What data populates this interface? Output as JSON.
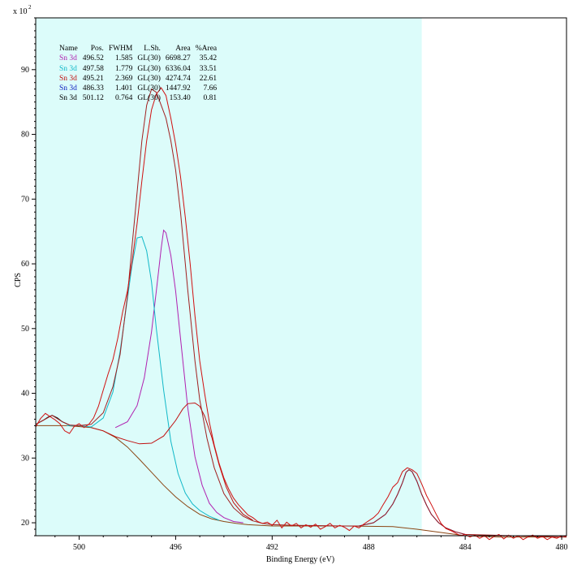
{
  "chart_data": {
    "type": "line",
    "title": "",
    "xlabel": "Binding Energy (eV)",
    "ylabel": "CPS",
    "y_multiplier_label": "x 10",
    "y_multiplier_exp": "2",
    "xlim": [
      501.8,
      479.8
    ],
    "ylim": [
      1800,
      9800
    ],
    "x_reversed": true,
    "x_ticks": [
      500,
      496,
      492,
      488,
      484,
      480
    ],
    "y_ticks": [
      20,
      30,
      40,
      50,
      60,
      70,
      80,
      90
    ],
    "y_tick_scale": 100,
    "highlight_region": {
      "x": [
        501.8,
        485.8
      ],
      "color": "#dcfcfa"
    },
    "peak_table": {
      "headers": [
        "Name",
        "Pos.",
        "FWHM",
        "L.Sh.",
        "Area",
        "%Area"
      ],
      "rows": [
        {
          "name": "Sn 3d",
          "pos": "496.52",
          "fwhm": "1.585",
          "lsh": "GL(30)",
          "area": "6698.27",
          "pct": "35.42",
          "color": "#b020b0"
        },
        {
          "name": "Sn 3d",
          "pos": "497.58",
          "fwhm": "1.779",
          "lsh": "GL(30)",
          "area": "6336.04",
          "pct": "33.51",
          "color": "#10b8c8"
        },
        {
          "name": "Sn 3d",
          "pos": "495.21",
          "fwhm": "2.369",
          "lsh": "GL(30)",
          "area": "4274.74",
          "pct": "22.61",
          "color": "#c01010"
        },
        {
          "name": "Sn 3d",
          "pos": "486.33",
          "fwhm": "1.401",
          "lsh": "GL(30)",
          "area": "1447.92",
          "pct": "7.66",
          "color": "#1020c0"
        },
        {
          "name": "Sn 3d",
          "pos": "501.12",
          "fwhm": "0.764",
          "lsh": "GL(30)",
          "area": "153.40",
          "pct": "0.81",
          "color": "#000000"
        }
      ]
    },
    "series": [
      {
        "role": "background",
        "color": "#8b4513",
        "x": [
          501.8,
          500.5,
          499.5,
          499.0,
          498.5,
          498.0,
          497.5,
          497.0,
          496.5,
          496.0,
          495.5,
          495.0,
          494.5,
          494.0,
          493.5,
          493.0,
          492.0,
          491.0,
          489.0,
          487.0,
          486.0,
          485.0,
          484.0,
          482.5,
          479.8
        ],
        "y": [
          3500,
          3500,
          3470,
          3420,
          3320,
          3170,
          2980,
          2780,
          2580,
          2400,
          2250,
          2130,
          2060,
          2020,
          1990,
          1970,
          1950,
          1950,
          1950,
          1940,
          1900,
          1850,
          1800,
          1780,
          1780
        ]
      },
      {
        "role": "component",
        "name": "Sn 3d",
        "color": "#b020b0",
        "x": [
          498.5,
          498.0,
          497.6,
          497.3,
          497.0,
          496.8,
          496.6,
          496.5,
          496.4,
          496.2,
          496.0,
          495.8,
          495.5,
          495.2,
          494.9,
          494.6,
          494.3,
          494.0,
          493.6,
          493.2
        ],
        "y": [
          3470,
          3560,
          3810,
          4240,
          4950,
          5580,
          6240,
          6520,
          6480,
          6130,
          5580,
          4850,
          3780,
          3020,
          2580,
          2300,
          2160,
          2080,
          2020,
          2000
        ]
      },
      {
        "role": "component",
        "name": "Sn 3d",
        "color": "#10b8c8",
        "x": [
          500.5,
          500.0,
          499.5,
          499.0,
          498.6,
          498.3,
          498.0,
          497.8,
          497.6,
          497.4,
          497.2,
          497.0,
          496.8,
          496.5,
          496.2,
          495.9,
          495.6,
          495.3,
          495.0,
          494.6,
          494.2
        ],
        "y": [
          3500,
          3500,
          3480,
          3620,
          4020,
          4650,
          5460,
          6000,
          6400,
          6420,
          6200,
          5720,
          5000,
          4050,
          3260,
          2760,
          2460,
          2290,
          2190,
          2100,
          2040
        ]
      },
      {
        "role": "component",
        "name": "Sn 3d",
        "color": "#c01010",
        "x": [
          499.5,
          499.0,
          498.5,
          498.0,
          497.5,
          497.0,
          496.5,
          496.0,
          495.7,
          495.5,
          495.2,
          495.0,
          494.8,
          494.5,
          494.2,
          493.9,
          493.6,
          493.2,
          492.8
        ],
        "y": [
          3470,
          3420,
          3330,
          3270,
          3220,
          3230,
          3340,
          3580,
          3760,
          3840,
          3850,
          3800,
          3650,
          3320,
          2900,
          2550,
          2310,
          2130,
          2040
        ]
      },
      {
        "role": "component",
        "name": "Sn 3d",
        "color": "#1020c0",
        "x": [
          488.4,
          487.8,
          487.3,
          487.0,
          486.8,
          486.6,
          486.45,
          486.33,
          486.2,
          486.0,
          485.8,
          485.6,
          485.4,
          485.1,
          484.8,
          484.4,
          484.0
        ],
        "y": [
          1950,
          2000,
          2130,
          2290,
          2440,
          2620,
          2780,
          2820,
          2790,
          2640,
          2440,
          2270,
          2130,
          2000,
          1920,
          1860,
          1820
        ]
      },
      {
        "role": "component",
        "name": "Sn 3d",
        "color": "#000000",
        "x": [
          501.8,
          501.5,
          501.3,
          501.12,
          500.9,
          500.7,
          500.4
        ],
        "y": [
          3520,
          3580,
          3630,
          3660,
          3620,
          3560,
          3510
        ]
      },
      {
        "role": "envelope",
        "color": "#a02020",
        "x": [
          501.8,
          501.5,
          501.12,
          500.7,
          500.4,
          500.0,
          499.5,
          499.0,
          498.6,
          498.3,
          498.0,
          497.8,
          497.6,
          497.4,
          497.2,
          497.0,
          496.8,
          496.6,
          496.4,
          496.2,
          496.0,
          495.8,
          495.5,
          495.2,
          495.0,
          494.7,
          494.4,
          494.0,
          493.6,
          493.2,
          492.8,
          492.4,
          492.0,
          491.0,
          489.0,
          488.4,
          487.8,
          487.3,
          487.0,
          486.8,
          486.6,
          486.45,
          486.33,
          486.2,
          486.0,
          485.8,
          485.6,
          485.4,
          485.1,
          484.8,
          484.4,
          484.0,
          482.0,
          479.8
        ],
        "y": [
          3520,
          3580,
          3660,
          3560,
          3510,
          3500,
          3520,
          3700,
          4100,
          4600,
          5500,
          6300,
          7100,
          7900,
          8450,
          8700,
          8650,
          8450,
          8250,
          7900,
          7450,
          6800,
          5600,
          4500,
          3900,
          3300,
          2850,
          2450,
          2230,
          2100,
          2030,
          1990,
          1970,
          1960,
          1950,
          1950,
          2000,
          2130,
          2290,
          2440,
          2620,
          2780,
          2820,
          2790,
          2640,
          2440,
          2270,
          2130,
          2000,
          1920,
          1860,
          1820,
          1800,
          1780
        ]
      },
      {
        "role": "raw",
        "color": "#d01010",
        "x": [
          501.8,
          501.6,
          501.4,
          501.2,
          501.0,
          500.8,
          500.6,
          500.4,
          500.2,
          500.0,
          499.8,
          499.6,
          499.4,
          499.2,
          499.0,
          498.8,
          498.6,
          498.4,
          498.2,
          498.0,
          497.8,
          497.6,
          497.4,
          497.2,
          497.0,
          496.8,
          496.6,
          496.4,
          496.2,
          496.0,
          495.8,
          495.6,
          495.4,
          495.2,
          495.0,
          494.8,
          494.6,
          494.4,
          494.2,
          494.0,
          493.8,
          493.6,
          493.4,
          493.2,
          493.0,
          492.8,
          492.6,
          492.4,
          492.2,
          492.0,
          491.8,
          491.6,
          491.4,
          491.2,
          491.0,
          490.8,
          490.6,
          490.4,
          490.2,
          490.0,
          489.8,
          489.6,
          489.4,
          489.2,
          489.0,
          488.8,
          488.6,
          488.4,
          488.2,
          488.0,
          487.8,
          487.6,
          487.4,
          487.2,
          487.0,
          486.8,
          486.6,
          486.4,
          486.2,
          486.0,
          485.8,
          485.6,
          485.4,
          485.2,
          485.0,
          484.8,
          484.6,
          484.4,
          484.2,
          484.0,
          483.8,
          483.6,
          483.4,
          483.2,
          483.0,
          482.8,
          482.6,
          482.4,
          482.2,
          482.0,
          481.8,
          481.6,
          481.4,
          481.2,
          481.0,
          480.8,
          480.6,
          480.4,
          480.2,
          480.0,
          479.8
        ],
        "y": [
          3480,
          3610,
          3690,
          3640,
          3590,
          3530,
          3420,
          3380,
          3490,
          3530,
          3470,
          3520,
          3620,
          3800,
          4050,
          4300,
          4520,
          4850,
          5250,
          5580,
          6050,
          6620,
          7280,
          7900,
          8380,
          8620,
          8720,
          8600,
          8250,
          7850,
          7350,
          6720,
          6000,
          5200,
          4500,
          4000,
          3550,
          3200,
          2920,
          2690,
          2520,
          2380,
          2280,
          2200,
          2120,
          2080,
          2020,
          1990,
          2010,
          1960,
          2040,
          1920,
          2010,
          1950,
          1990,
          1920,
          1970,
          1930,
          1980,
          1900,
          1940,
          1990,
          1920,
          1960,
          1930,
          1880,
          1950,
          1920,
          1980,
          2030,
          2080,
          2150,
          2280,
          2400,
          2550,
          2620,
          2790,
          2850,
          2820,
          2760,
          2600,
          2420,
          2280,
          2130,
          1990,
          1910,
          1880,
          1840,
          1800,
          1820,
          1780,
          1810,
          1760,
          1800,
          1740,
          1790,
          1820,
          1750,
          1810,
          1760,
          1800,
          1740,
          1780,
          1810,
          1760,
          1790,
          1740,
          1780,
          1760,
          1800,
          1790
        ]
      }
    ]
  }
}
